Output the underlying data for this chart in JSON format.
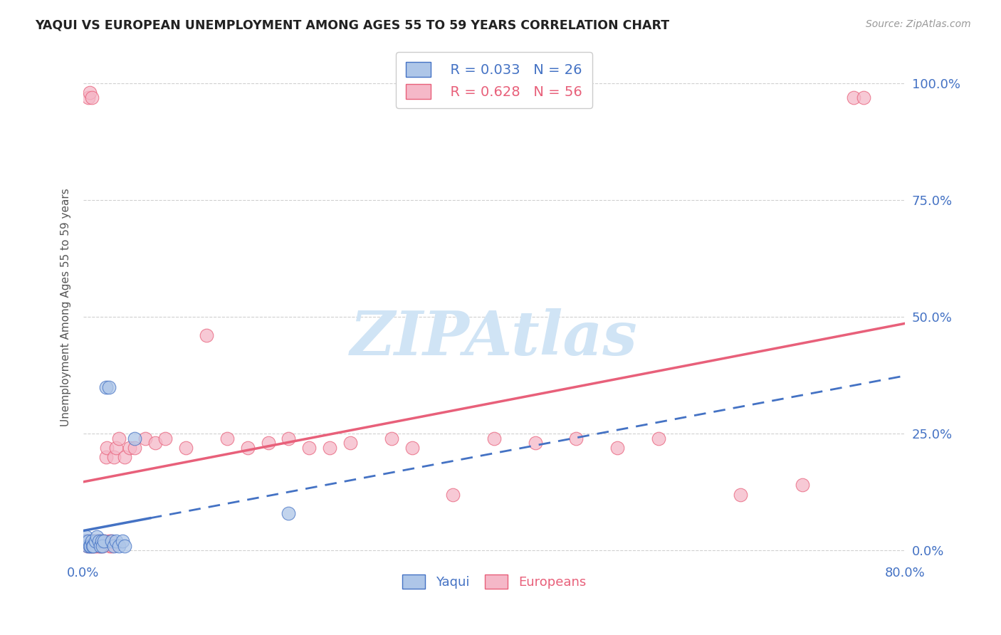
{
  "title": "YAQUI VS EUROPEAN UNEMPLOYMENT AMONG AGES 55 TO 59 YEARS CORRELATION CHART",
  "source": "Source: ZipAtlas.com",
  "ylabel_text": "Unemployment Among Ages 55 to 59 years",
  "ylabel_labels": [
    "0.0%",
    "25.0%",
    "50.0%",
    "75.0%",
    "100.0%"
  ],
  "ylabel_values": [
    0.0,
    0.25,
    0.5,
    0.75,
    1.0
  ],
  "xlim": [
    0.0,
    0.8
  ],
  "ylim": [
    -0.02,
    1.06
  ],
  "yaqui_fill": "#aec6e8",
  "yaqui_edge": "#4472c4",
  "european_fill": "#f5b8c8",
  "european_edge": "#e8607a",
  "yaqui_line_color": "#4472c4",
  "european_line_color": "#e8607a",
  "watermark_text": "ZIPAtlas",
  "watermark_color": "#d0e4f5",
  "legend_r_yaqui": "R = 0.033",
  "legend_n_yaqui": "N = 26",
  "legend_r_european": "R = 0.628",
  "legend_n_european": "N = 56",
  "yaqui_x": [
    0.002,
    0.003,
    0.004,
    0.005,
    0.006,
    0.007,
    0.008,
    0.009,
    0.01,
    0.012,
    0.013,
    0.015,
    0.017,
    0.018,
    0.019,
    0.02,
    0.022,
    0.025,
    0.028,
    0.03,
    0.032,
    0.035,
    0.038,
    0.04,
    0.05,
    0.2
  ],
  "yaqui_y": [
    0.02,
    0.03,
    0.01,
    0.02,
    0.01,
    0.01,
    0.02,
    0.01,
    0.01,
    0.02,
    0.03,
    0.02,
    0.01,
    0.02,
    0.01,
    0.02,
    0.35,
    0.35,
    0.02,
    0.01,
    0.02,
    0.01,
    0.02,
    0.01,
    0.24,
    0.08
  ],
  "european_x": [
    0.003,
    0.004,
    0.005,
    0.005,
    0.006,
    0.007,
    0.008,
    0.008,
    0.009,
    0.01,
    0.011,
    0.012,
    0.013,
    0.014,
    0.015,
    0.016,
    0.017,
    0.018,
    0.019,
    0.02,
    0.022,
    0.023,
    0.025,
    0.026,
    0.027,
    0.028,
    0.03,
    0.032,
    0.035,
    0.04,
    0.045,
    0.05,
    0.06,
    0.07,
    0.08,
    0.1,
    0.12,
    0.14,
    0.16,
    0.18,
    0.2,
    0.22,
    0.24,
    0.26,
    0.3,
    0.32,
    0.36,
    0.4,
    0.44,
    0.48,
    0.52,
    0.56,
    0.64,
    0.7,
    0.75,
    0.76
  ],
  "european_y": [
    0.02,
    0.01,
    0.02,
    0.97,
    0.98,
    0.01,
    0.02,
    0.97,
    0.01,
    0.02,
    0.01,
    0.02,
    0.01,
    0.02,
    0.01,
    0.02,
    0.01,
    0.02,
    0.01,
    0.02,
    0.2,
    0.22,
    0.02,
    0.01,
    0.02,
    0.01,
    0.2,
    0.22,
    0.24,
    0.2,
    0.22,
    0.22,
    0.24,
    0.23,
    0.24,
    0.22,
    0.46,
    0.24,
    0.22,
    0.23,
    0.24,
    0.22,
    0.22,
    0.23,
    0.24,
    0.22,
    0.12,
    0.24,
    0.23,
    0.24,
    0.22,
    0.24,
    0.12,
    0.14,
    0.97,
    0.97
  ]
}
